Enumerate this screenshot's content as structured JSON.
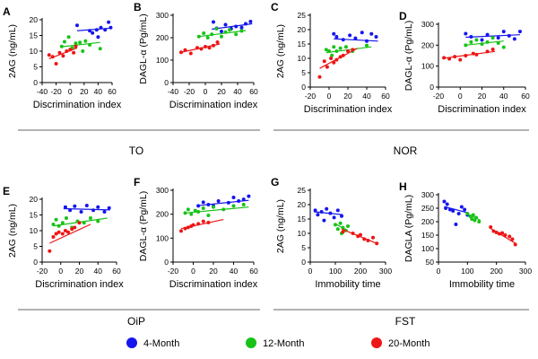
{
  "figure": {
    "groups": [
      {
        "label": "TO"
      },
      {
        "label": "NOR"
      },
      {
        "label": "OiP"
      },
      {
        "label": "FST"
      }
    ],
    "legend": [
      {
        "label": "4-Month",
        "color": "#1515ee"
      },
      {
        "label": "12-Month",
        "color": "#17c317"
      },
      {
        "label": "20-Month",
        "color": "#ee1515"
      }
    ]
  },
  "chart_data": [
    {
      "panel": "A",
      "type": "scatter",
      "xlabel": "Discrimination index",
      "ylabel": "2AG (ng/mL)",
      "xlim": [
        -40,
        60
      ],
      "ylim": [
        0,
        20
      ],
      "xticks": [
        "-40",
        "-20",
        "0",
        "20",
        "40",
        "60"
      ],
      "yticks": [
        "0",
        "5",
        "10",
        "15",
        "20"
      ],
      "series": [
        {
          "name": "4-Month",
          "color": "#1515ee",
          "x": [
            10,
            28,
            32,
            38,
            40,
            44,
            50,
            55,
            58
          ],
          "y": [
            18.2,
            16.5,
            15.8,
            16.8,
            14.5,
            17.5,
            16.8,
            19.2,
            17.5
          ],
          "fit": [
            [
              10,
              16.5
            ],
            [
              57,
              17.3
            ]
          ]
        },
        {
          "name": "12-Month",
          "color": "#17c317",
          "x": [
            -12,
            -8,
            -2,
            3,
            8,
            14,
            18,
            22,
            28,
            43
          ],
          "y": [
            11.5,
            13.0,
            14.5,
            11.0,
            12.5,
            12.8,
            10.0,
            13.2,
            12.0,
            10.8
          ],
          "fit": [
            [
              -12,
              11.4
            ],
            [
              43,
              12.8
            ]
          ]
        },
        {
          "name": "20-Month",
          "color": "#ee1515",
          "x": [
            -30,
            -25,
            -20,
            -15,
            -10,
            -5,
            0,
            5,
            8
          ],
          "y": [
            8.8,
            8.2,
            6.0,
            9.5,
            8.5,
            10.0,
            10.5,
            9.5,
            11.5
          ],
          "fit": [
            [
              -30,
              7.6
            ],
            [
              10,
              11.0
            ]
          ]
        }
      ]
    },
    {
      "panel": "B",
      "type": "scatter",
      "xlabel": "Discrimination index",
      "ylabel": "DAGL-α (Pg/mL)",
      "xlim": [
        -40,
        60
      ],
      "ylim": [
        0,
        300
      ],
      "xticks": [
        "-40",
        "-20",
        "0",
        "20",
        "40",
        "60"
      ],
      "yticks": [
        "0",
        "100",
        "200",
        "300"
      ],
      "series": [
        {
          "name": "4-Month",
          "color": "#1515ee",
          "x": [
            10,
            14,
            20,
            25,
            32,
            38,
            45,
            50,
            56
          ],
          "y": [
            270,
            242,
            228,
            258,
            240,
            250,
            245,
            262,
            272
          ],
          "fit": [
            [
              8,
              238
            ],
            [
              58,
              262
            ]
          ]
        },
        {
          "name": "12-Month",
          "color": "#17c317",
          "x": [
            -8,
            -2,
            3,
            8,
            14,
            20,
            25,
            30,
            38,
            45
          ],
          "y": [
            205,
            220,
            200,
            215,
            240,
            205,
            225,
            235,
            215,
            230
          ],
          "fit": [
            [
              -8,
              205
            ],
            [
              50,
              232
            ]
          ]
        },
        {
          "name": "20-Month",
          "color": "#ee1515",
          "x": [
            -30,
            -25,
            -18,
            -10,
            -5,
            0,
            5,
            10,
            15
          ],
          "y": [
            135,
            145,
            130,
            155,
            150,
            160,
            155,
            165,
            180
          ],
          "fit": [
            [
              -30,
              135
            ],
            [
              18,
              172
            ]
          ]
        }
      ]
    },
    {
      "panel": "C",
      "type": "scatter",
      "xlabel": "Discrimination index",
      "ylabel": "2AG (ng/mL)",
      "xlim": [
        -20,
        60
      ],
      "ylim": [
        0,
        25
      ],
      "xticks": [
        "-20",
        "0",
        "20",
        "40",
        "60"
      ],
      "yticks": [
        "0",
        "5",
        "10",
        "15",
        "20",
        "25"
      ],
      "series": [
        {
          "name": "4-Month",
          "color": "#1515ee",
          "x": [
            5,
            8,
            15,
            22,
            28,
            35,
            40,
            45,
            50
          ],
          "y": [
            18.5,
            17.5,
            16.5,
            18.0,
            17.0,
            19.0,
            16.0,
            18.5,
            17.5
          ],
          "fit": [
            [
              5,
              16.8
            ],
            [
              52,
              16.0
            ]
          ]
        },
        {
          "name": "12-Month",
          "color": "#17c317",
          "x": [
            -3,
            0,
            3,
            5,
            8,
            12,
            18,
            25,
            40
          ],
          "y": [
            13.0,
            12.5,
            11.0,
            14.0,
            12.5,
            13.5,
            14.0,
            12.5,
            14.5
          ],
          "fit": [
            [
              -3,
              12.0
            ],
            [
              45,
              14.0
            ]
          ]
        },
        {
          "name": "20-Month",
          "color": "#ee1515",
          "x": [
            -10,
            -5,
            -2,
            2,
            5,
            8,
            12,
            15,
            20,
            25
          ],
          "y": [
            3.5,
            9.0,
            7.0,
            10.0,
            8.5,
            9.5,
            10.5,
            11.0,
            12.5,
            13.0
          ],
          "fit": [
            [
              -10,
              6.5
            ],
            [
              30,
              13.5
            ]
          ]
        }
      ]
    },
    {
      "panel": "D",
      "type": "scatter",
      "xlabel": "Discrimination index",
      "ylabel": "DAGL-α (Pg/mL)",
      "xlim": [
        -20,
        60
      ],
      "ylim": [
        0,
        300
      ],
      "xticks": [
        "-20",
        "0",
        "20",
        "40",
        "60"
      ],
      "yticks": [
        "0",
        "100",
        "200",
        "300"
      ],
      "series": [
        {
          "name": "4-Month",
          "color": "#1515ee",
          "x": [
            5,
            10,
            20,
            25,
            35,
            40,
            45,
            50,
            55
          ],
          "y": [
            255,
            240,
            225,
            250,
            235,
            265,
            245,
            230,
            265
          ],
          "fit": [
            [
              5,
              238
            ],
            [
              55,
              250
            ]
          ]
        },
        {
          "name": "12-Month",
          "color": "#17c317",
          "x": [
            5,
            10,
            15,
            20,
            25,
            30,
            35,
            40
          ],
          "y": [
            200,
            215,
            225,
            205,
            215,
            235,
            210,
            190
          ],
          "fit": [
            [
              5,
              200
            ],
            [
              40,
              220
            ]
          ]
        },
        {
          "name": "20-Month",
          "color": "#ee1515",
          "x": [
            -15,
            -10,
            -5,
            0,
            5,
            12,
            15,
            25,
            30
          ],
          "y": [
            140,
            135,
            145,
            130,
            150,
            160,
            155,
            170,
            180
          ],
          "fit": [
            [
              -15,
              138
            ],
            [
              32,
              170
            ]
          ]
        }
      ]
    },
    {
      "panel": "E",
      "type": "scatter",
      "xlabel": "Discrimination index",
      "ylabel": "2AG (ng/mL)",
      "xlim": [
        -20,
        60
      ],
      "ylim": [
        0,
        20
      ],
      "xticks": [
        "-20",
        "0",
        "20",
        "40",
        "60"
      ],
      "yticks": [
        "0",
        "5",
        "10",
        "15",
        "20"
      ],
      "series": [
        {
          "name": "4-Month",
          "color": "#1515ee",
          "x": [
            5,
            10,
            15,
            22,
            28,
            35,
            40,
            47,
            52
          ],
          "y": [
            17.5,
            16.5,
            17.8,
            16.0,
            18.0,
            16.5,
            17.5,
            16.0,
            17.2
          ],
          "fit": [
            [
              3,
              17.0
            ],
            [
              53,
              16.6
            ]
          ]
        },
        {
          "name": "12-Month",
          "color": "#17c317",
          "x": [
            -8,
            -5,
            -2,
            2,
            6,
            12,
            18,
            25,
            32,
            40
          ],
          "y": [
            12.0,
            13.5,
            11.5,
            12.5,
            14.0,
            11.0,
            13.0,
            12.5,
            14.0,
            13.0
          ],
          "fit": [
            [
              -8,
              11.5
            ],
            [
              50,
              14.0
            ]
          ]
        },
        {
          "name": "20-Month",
          "color": "#ee1515",
          "x": [
            -12,
            -8,
            -5,
            -2,
            2,
            5,
            8,
            12,
            15,
            20
          ],
          "y": [
            3.5,
            8.0,
            9.0,
            9.5,
            9.0,
            10.0,
            9.5,
            10.5,
            11.0,
            12.5
          ],
          "fit": [
            [
              -12,
              6.0
            ],
            [
              32,
              12.0
            ]
          ]
        }
      ]
    },
    {
      "panel": "F",
      "type": "scatter",
      "xlabel": "Discrimination index",
      "ylabel": "DAGL-α (Pg/mL)",
      "xlim": [
        -20,
        60
      ],
      "ylim": [
        0,
        300
      ],
      "xticks": [
        "-20",
        "0",
        "20",
        "40",
        "60"
      ],
      "yticks": [
        "0",
        "100",
        "200",
        "300"
      ],
      "series": [
        {
          "name": "4-Month",
          "color": "#1515ee",
          "x": [
            5,
            10,
            15,
            20,
            25,
            35,
            40,
            45,
            50,
            55
          ],
          "y": [
            235,
            250,
            240,
            235,
            255,
            248,
            270,
            255,
            262,
            275
          ],
          "fit": [
            [
              5,
              236
            ],
            [
              55,
              258
            ]
          ]
        },
        {
          "name": "12-Month",
          "color": "#17c317",
          "x": [
            -8,
            -5,
            -2,
            2,
            5,
            10,
            15,
            20,
            30,
            40,
            50
          ],
          "y": [
            205,
            220,
            200,
            215,
            210,
            225,
            195,
            230,
            220,
            235,
            240
          ],
          "fit": [
            [
              -8,
              205
            ],
            [
              55,
              230
            ]
          ]
        },
        {
          "name": "20-Month",
          "color": "#ee1515",
          "x": [
            -12,
            -8,
            -5,
            -2,
            0,
            5,
            10,
            15
          ],
          "y": [
            130,
            140,
            145,
            150,
            155,
            160,
            170,
            165
          ],
          "fit": [
            [
              -12,
              140
            ],
            [
              30,
              178
            ]
          ]
        }
      ]
    },
    {
      "panel": "G",
      "type": "scatter",
      "xlabel": "Immobility time",
      "ylabel": "2AG (ng/mL)",
      "xlim": [
        0,
        300
      ],
      "ylim": [
        0,
        25
      ],
      "xticks": [
        "0",
        "100",
        "200",
        "300"
      ],
      "yticks": [
        "0",
        "5",
        "10",
        "15",
        "20",
        "25"
      ],
      "series": [
        {
          "name": "4-Month",
          "color": "#1515ee",
          "x": [
            20,
            30,
            45,
            55,
            65,
            80,
            95,
            110,
            125
          ],
          "y": [
            18.0,
            16.5,
            17.5,
            14.5,
            18.5,
            17.0,
            15.5,
            18.0,
            16.0
          ],
          "fit": [
            [
              15,
              17.5
            ],
            [
              130,
              16.5
            ]
          ]
        },
        {
          "name": "12-Month",
          "color": "#17c317",
          "x": [
            100,
            110,
            120,
            125,
            130,
            140,
            150
          ],
          "y": [
            13.0,
            11.5,
            13.5,
            10.0,
            12.0,
            11.0,
            12.5
          ],
          "fit": [
            [
              95,
              13.5
            ],
            [
              150,
              11.0
            ]
          ]
        },
        {
          "name": "20-Month",
          "color": "#ee1515",
          "x": [
            130,
            170,
            190,
            200,
            215,
            230,
            250,
            265
          ],
          "y": [
            10.5,
            10.0,
            9.0,
            9.5,
            8.0,
            7.5,
            8.5,
            6.5
          ],
          "fit": [
            [
              125,
              11.5
            ],
            [
              265,
              6.5
            ]
          ]
        }
      ]
    },
    {
      "panel": "H",
      "type": "scatter",
      "xlabel": "Immobility time",
      "ylabel": "DAGLA (Pg/mL)",
      "xlim": [
        0,
        300
      ],
      "ylim": [
        50,
        300
      ],
      "xticks": [
        "0",
        "100",
        "200",
        "300"
      ],
      "yticks": [
        "50",
        "100",
        "150",
        "200",
        "250",
        "300"
      ],
      "series": [
        {
          "name": "4-Month",
          "color": "#1515ee",
          "x": [
            20,
            25,
            30,
            40,
            50,
            60,
            70,
            80,
            90,
            100
          ],
          "y": [
            275,
            250,
            265,
            245,
            240,
            190,
            230,
            255,
            245,
            225
          ],
          "fit": [
            [
              20,
              256
            ],
            [
              105,
              232
            ]
          ]
        },
        {
          "name": "12-Month",
          "color": "#17c317",
          "x": [
            100,
            110,
            115,
            120,
            125,
            130,
            140
          ],
          "y": [
            230,
            220,
            210,
            225,
            205,
            215,
            200
          ],
          "fit": [
            [
              100,
              228
            ],
            [
              145,
              205
            ]
          ]
        },
        {
          "name": "20-Month",
          "color": "#ee1515",
          "x": [
            180,
            190,
            200,
            210,
            220,
            230,
            245,
            255,
            265
          ],
          "y": [
            180,
            165,
            160,
            155,
            158,
            150,
            145,
            135,
            115
          ],
          "fit": [
            [
              175,
              178
            ],
            [
              268,
              118
            ]
          ]
        }
      ]
    }
  ]
}
